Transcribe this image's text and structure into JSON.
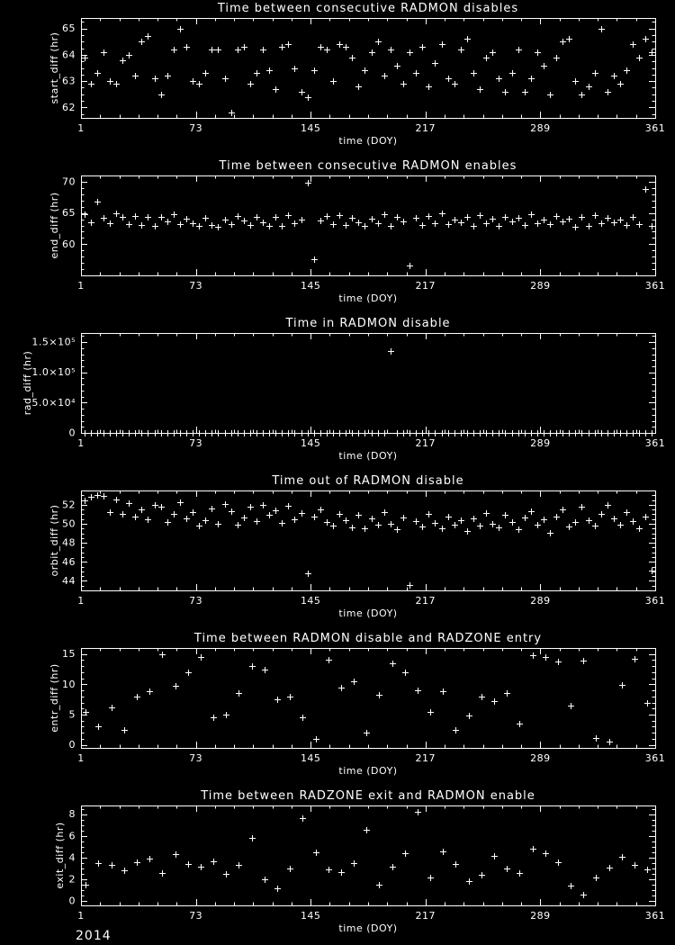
{
  "page": {
    "background": "#000000",
    "foreground": "#ffffff"
  },
  "footer": {
    "year": "2014"
  },
  "chart_data": [
    {
      "type": "scatter",
      "title": "Time between consecutive RADMON disables",
      "xlabel": "time (DOY)",
      "ylabel": "start_diff (hr)",
      "marker": "plus",
      "grid": false,
      "xlim": [
        1,
        361
      ],
      "ylim": [
        61.6,
        65.4
      ],
      "xticks": [
        1,
        73,
        145,
        217,
        289,
        361
      ],
      "xminor": 12,
      "yticks": [
        62,
        63,
        64,
        65
      ],
      "ytick_labels": [
        "62",
        "63",
        "64",
        "65"
      ],
      "yminor": 0.25,
      "x": [
        3,
        7,
        11,
        15,
        19,
        23,
        27,
        31,
        35,
        39,
        43,
        47,
        51,
        55,
        59,
        63,
        67,
        71,
        75,
        79,
        83,
        87,
        91,
        95,
        99,
        103,
        107,
        111,
        115,
        119,
        123,
        127,
        131,
        135,
        139,
        143,
        147,
        151,
        155,
        159,
        163,
        167,
        171,
        175,
        179,
        183,
        187,
        191,
        195,
        199,
        203,
        207,
        211,
        215,
        219,
        223,
        227,
        231,
        235,
        239,
        243,
        247,
        251,
        255,
        259,
        263,
        267,
        271,
        275,
        279,
        283,
        287,
        291,
        295,
        299,
        303,
        307,
        311,
        315,
        319,
        323,
        327,
        331,
        335,
        339,
        343,
        347,
        351,
        355,
        359
      ],
      "y": [
        63.9,
        62.9,
        63.3,
        64.1,
        63.0,
        62.9,
        63.8,
        64.0,
        63.2,
        64.5,
        64.7,
        63.1,
        62.5,
        63.2,
        64.2,
        65.0,
        64.3,
        63.0,
        62.9,
        63.3,
        64.2,
        64.2,
        63.1,
        61.8,
        64.2,
        64.3,
        62.9,
        63.3,
        64.2,
        63.4,
        62.7,
        64.3,
        64.4,
        63.5,
        62.6,
        62.4,
        63.4,
        64.3,
        64.2,
        63.0,
        64.4,
        64.3,
        63.9,
        62.8,
        63.4,
        64.1,
        64.5,
        63.2,
        64.2,
        63.6,
        62.9,
        64.1,
        63.3,
        64.3,
        62.8,
        63.7,
        64.4,
        63.1,
        62.9,
        64.2,
        64.6,
        63.3,
        62.7,
        63.9,
        64.1,
        63.1,
        62.6,
        63.3,
        64.2,
        62.6,
        63.1,
        64.1,
        63.6,
        62.5,
        63.9,
        64.5,
        64.6,
        63.0,
        62.5,
        62.8,
        63.3,
        65.0,
        62.6,
        63.2,
        62.9,
        63.4,
        64.4,
        63.9,
        64.6,
        64.1
      ]
    },
    {
      "type": "scatter",
      "title": "Time between consecutive RADMON enables",
      "xlabel": "time (DOY)",
      "ylabel": "end_diff (hr)",
      "marker": "plus",
      "grid": false,
      "xlim": [
        1,
        361
      ],
      "ylim": [
        55,
        71
      ],
      "xticks": [
        1,
        73,
        145,
        217,
        289,
        361
      ],
      "xminor": 12,
      "yticks": [
        60,
        65,
        70
      ],
      "ytick_labels": [
        "60",
        "65",
        "70"
      ],
      "yminor": 1,
      "x": [
        3,
        7,
        11,
        15,
        19,
        23,
        27,
        31,
        35,
        39,
        43,
        47,
        51,
        55,
        59,
        63,
        67,
        71,
        75,
        79,
        83,
        87,
        91,
        95,
        99,
        103,
        107,
        111,
        115,
        119,
        123,
        127,
        131,
        135,
        139,
        143,
        147,
        151,
        155,
        159,
        163,
        167,
        171,
        175,
        179,
        183,
        187,
        191,
        195,
        199,
        203,
        207,
        211,
        215,
        219,
        223,
        227,
        231,
        235,
        239,
        243,
        247,
        251,
        255,
        259,
        263,
        267,
        271,
        275,
        279,
        283,
        287,
        291,
        295,
        299,
        303,
        307,
        311,
        315,
        319,
        323,
        327,
        331,
        335,
        339,
        343,
        347,
        351,
        355,
        359
      ],
      "y": [
        64.8,
        63.5,
        66.8,
        64.2,
        63.4,
        64.9,
        64.3,
        63.2,
        64.5,
        63.1,
        64.4,
        63.0,
        64.3,
        63.6,
        64.8,
        63.2,
        64.1,
        63.3,
        63.0,
        64.2,
        63.1,
        62.8,
        64.0,
        63.2,
        64.5,
        63.8,
        63.1,
        64.4,
        63.5,
        62.9,
        64.3,
        63.0,
        64.6,
        63.4,
        64.0,
        69.8,
        57.6,
        63.8,
        64.5,
        63.2,
        64.7,
        63.1,
        64.2,
        63.5,
        62.9,
        64.1,
        63.3,
        64.8,
        63.0,
        64.4,
        63.6,
        56.6,
        64.2,
        63.1,
        64.5,
        63.4,
        64.9,
        63.2,
        64.0,
        63.5,
        64.3,
        62.9,
        64.6,
        63.3,
        64.1,
        63.0,
        64.4,
        63.7,
        64.2,
        63.1,
        64.8,
        63.4,
        64.0,
        63.2,
        64.5,
        63.6,
        64.1,
        62.8,
        64.3,
        63.0,
        64.7,
        63.3,
        64.2,
        63.5,
        64.0,
        63.1,
        64.4,
        63.2,
        68.9,
        63.0
      ]
    },
    {
      "type": "scatter",
      "title": "Time in RADMON disable",
      "xlabel": "time (DOY)",
      "ylabel": "rad_diff (hr)",
      "marker": "plus",
      "grid": false,
      "xlim": [
        1,
        361
      ],
      "ylim": [
        0,
        165000
      ],
      "xticks": [
        1,
        73,
        145,
        217,
        289,
        361
      ],
      "xminor": 12,
      "yticks": [
        0,
        50000,
        100000,
        150000
      ],
      "ytick_labels": [
        "0",
        "5.0×10⁴",
        "1.0×10⁵",
        "1.5×10⁵"
      ],
      "yminor": 10000,
      "x": [
        3,
        7,
        11,
        15,
        19,
        23,
        27,
        31,
        35,
        39,
        43,
        47,
        51,
        55,
        59,
        63,
        67,
        71,
        75,
        79,
        83,
        87,
        91,
        95,
        99,
        103,
        107,
        111,
        115,
        119,
        123,
        127,
        131,
        135,
        139,
        143,
        147,
        151,
        155,
        159,
        163,
        167,
        171,
        175,
        179,
        183,
        187,
        191,
        195,
        199,
        203,
        207,
        211,
        215,
        219,
        223,
        227,
        231,
        235,
        239,
        243,
        247,
        251,
        255,
        259,
        263,
        267,
        271,
        275,
        279,
        283,
        287,
        291,
        295,
        299,
        303,
        307,
        311,
        315,
        319,
        323,
        327,
        331,
        335,
        339,
        343,
        347,
        351,
        355,
        359
      ],
      "y": [
        62,
        64,
        61,
        65,
        63,
        60,
        66,
        62,
        64,
        63,
        62,
        64,
        61,
        65,
        63,
        60,
        66,
        62,
        64,
        63,
        62,
        64,
        61,
        65,
        63,
        60,
        66,
        62,
        64,
        63,
        62,
        64,
        61,
        65,
        63,
        60,
        66,
        62,
        64,
        63,
        62,
        64,
        61,
        65,
        63,
        60,
        66,
        62,
        135000,
        63,
        62,
        64,
        61,
        65,
        63,
        60,
        66,
        62,
        64,
        63,
        62,
        64,
        61,
        65,
        63,
        60,
        66,
        62,
        64,
        63,
        62,
        64,
        61,
        65,
        63,
        60,
        66,
        62,
        64,
        63,
        62,
        64,
        61,
        65,
        63,
        60,
        66,
        62,
        64,
        63
      ]
    },
    {
      "type": "scatter",
      "title": "Time out of RADMON disable",
      "xlabel": "time (DOY)",
      "ylabel": "orbit_diff (hr)",
      "marker": "plus",
      "grid": false,
      "xlim": [
        1,
        361
      ],
      "ylim": [
        43,
        53.5
      ],
      "xticks": [
        1,
        73,
        145,
        217,
        289,
        361
      ],
      "xminor": 12,
      "yticks": [
        44,
        46,
        48,
        50,
        52
      ],
      "ytick_labels": [
        "44",
        "46",
        "48",
        "50",
        "52"
      ],
      "yminor": 0.5,
      "x": [
        3,
        7,
        11,
        15,
        19,
        23,
        27,
        31,
        35,
        39,
        43,
        47,
        51,
        55,
        59,
        63,
        67,
        71,
        75,
        79,
        83,
        87,
        91,
        95,
        99,
        103,
        107,
        111,
        115,
        119,
        123,
        127,
        131,
        135,
        139,
        143,
        147,
        151,
        155,
        159,
        163,
        167,
        171,
        175,
        179,
        183,
        187,
        191,
        195,
        199,
        203,
        207,
        211,
        215,
        219,
        223,
        227,
        231,
        235,
        239,
        243,
        247,
        251,
        255,
        259,
        263,
        267,
        271,
        275,
        279,
        283,
        287,
        291,
        295,
        299,
        303,
        307,
        311,
        315,
        319,
        323,
        327,
        331,
        335,
        339,
        343,
        347,
        351,
        355,
        359
      ],
      "y": [
        52.5,
        52.8,
        53.0,
        52.9,
        51.2,
        52.6,
        51.0,
        52.2,
        50.8,
        51.5,
        50.5,
        52.0,
        51.8,
        50.2,
        51.0,
        52.3,
        50.6,
        51.2,
        49.8,
        50.4,
        51.6,
        50.0,
        52.1,
        51.3,
        49.9,
        50.7,
        51.8,
        50.3,
        52.0,
        50.9,
        51.4,
        50.1,
        51.9,
        50.5,
        51.1,
        44.8,
        50.8,
        51.5,
        50.2,
        49.8,
        51.0,
        50.4,
        49.6,
        50.9,
        49.5,
        50.6,
        49.9,
        51.2,
        50.0,
        49.4,
        50.7,
        43.6,
        50.3,
        49.7,
        51.0,
        50.1,
        49.5,
        50.8,
        49.9,
        50.4,
        49.2,
        50.6,
        49.8,
        51.1,
        50.0,
        49.6,
        50.9,
        50.2,
        49.4,
        50.7,
        51.3,
        49.9,
        50.5,
        49.1,
        50.8,
        51.5,
        49.7,
        50.2,
        51.8,
        50.4,
        49.8,
        51.0,
        52.0,
        50.6,
        49.9,
        51.2,
        50.3,
        49.5,
        50.8,
        45.1
      ]
    },
    {
      "type": "scatter",
      "title": "Time between RADMON disable and RADZONE entry",
      "xlabel": "time (DOY)",
      "ylabel": "entr_diff (hr)",
      "marker": "plus",
      "grid": false,
      "xlim": [
        1,
        361
      ],
      "ylim": [
        -0.5,
        16
      ],
      "xticks": [
        1,
        73,
        145,
        217,
        289,
        361
      ],
      "xminor": 12,
      "yticks": [
        0,
        5,
        10,
        15
      ],
      "ytick_labels": [
        "0",
        "5",
        "10",
        "15"
      ],
      "yminor": 1,
      "x": [
        4,
        12,
        20,
        28,
        36,
        44,
        52,
        60,
        68,
        76,
        84,
        92,
        100,
        108,
        116,
        124,
        132,
        140,
        148,
        156,
        164,
        172,
        180,
        188,
        196,
        204,
        212,
        220,
        228,
        236,
        244,
        252,
        260,
        268,
        276,
        284,
        292,
        300,
        308,
        316,
        324,
        332,
        340,
        348,
        356
      ],
      "y": [
        5.5,
        3.0,
        6.2,
        2.5,
        8.0,
        8.8,
        15.0,
        9.7,
        12.0,
        14.5,
        4.5,
        5.0,
        8.5,
        13.0,
        12.5,
        7.5,
        8.0,
        4.5,
        1.0,
        14.0,
        9.5,
        10.5,
        2.0,
        8.2,
        13.5,
        12.0,
        9.0,
        5.5,
        8.8,
        2.5,
        4.8,
        8.0,
        7.2,
        8.6,
        3.5,
        14.8,
        14.5,
        13.8,
        6.5,
        13.9,
        1.2,
        0.5,
        9.9,
        14.2,
        7.0
      ]
    },
    {
      "type": "scatter",
      "title": "Time between RADZONE exit and RADMON enable",
      "xlabel": "time (DOY)",
      "ylabel": "exit_diff (hr)",
      "marker": "plus",
      "grid": false,
      "xlim": [
        1,
        361
      ],
      "ylim": [
        -0.4,
        8.8
      ],
      "xticks": [
        1,
        73,
        145,
        217,
        289,
        361
      ],
      "xminor": 12,
      "yticks": [
        0,
        2,
        4,
        6,
        8
      ],
      "ytick_labels": [
        "0",
        "2",
        "4",
        "6",
        "8"
      ],
      "yminor": 0.5,
      "x": [
        4,
        12,
        20,
        28,
        36,
        44,
        52,
        60,
        68,
        76,
        84,
        92,
        100,
        108,
        116,
        124,
        132,
        140,
        148,
        156,
        164,
        172,
        180,
        188,
        196,
        204,
        212,
        220,
        228,
        236,
        244,
        252,
        260,
        268,
        276,
        284,
        292,
        300,
        308,
        316,
        324,
        332,
        340,
        348,
        356
      ],
      "y": [
        1.5,
        3.5,
        3.3,
        2.8,
        3.6,
        3.9,
        2.6,
        4.3,
        3.4,
        3.2,
        3.7,
        2.5,
        3.3,
        5.8,
        2.0,
        1.2,
        3.0,
        7.6,
        4.5,
        2.9,
        2.7,
        3.5,
        6.6,
        1.5,
        3.2,
        4.4,
        8.2,
        2.2,
        4.6,
        3.4,
        1.8,
        2.4,
        4.2,
        3.0,
        2.6,
        4.8,
        4.4,
        3.6,
        1.4,
        0.6,
        2.2,
        3.1,
        4.1,
        3.3,
        2.9
      ]
    }
  ]
}
